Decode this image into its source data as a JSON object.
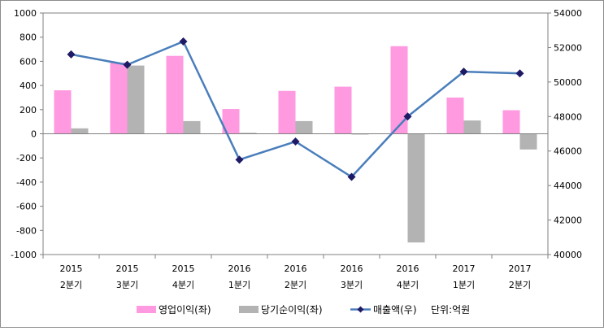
{
  "chart_data": {
    "type": "bar",
    "categories": [
      [
        "2015",
        "2분기"
      ],
      [
        "2015",
        "3분기"
      ],
      [
        "2015",
        "4분기"
      ],
      [
        "2016",
        "1분기"
      ],
      [
        "2016",
        "2분기"
      ],
      [
        "2016",
        "3분기"
      ],
      [
        "2016",
        "4분기"
      ],
      [
        "2017",
        "1분기"
      ],
      [
        "2017",
        "2분기"
      ]
    ],
    "series": [
      {
        "name": "영업이익(좌)",
        "type": "bar",
        "axis": "left",
        "color": "#ff99e0",
        "values": [
          360,
          590,
          645,
          205,
          355,
          390,
          725,
          300,
          195
        ]
      },
      {
        "name": "당기순이익(좌)",
        "type": "bar",
        "axis": "left",
        "color": "#b3b3b3",
        "values": [
          45,
          565,
          105,
          8,
          105,
          -5,
          -900,
          110,
          -130
        ]
      },
      {
        "name": "매출액(우)",
        "type": "line",
        "axis": "right",
        "color": "#4a7ebb",
        "marker_color": "#1f1a66",
        "values": [
          51600,
          51000,
          52350,
          45500,
          46550,
          44500,
          48000,
          50600,
          50500
        ]
      }
    ],
    "unit_note": "단위:억원",
    "y_left": {
      "min": -1000,
      "max": 1000,
      "step": 200,
      "ticks": [
        "1000",
        "800",
        "600",
        "400",
        "200",
        "0",
        "-200",
        "-400",
        "-600",
        "-800",
        "-1000"
      ]
    },
    "y_right": {
      "min": 40000,
      "max": 54000,
      "step": 2000,
      "ticks": [
        "54000",
        "52000",
        "50000",
        "48000",
        "46000",
        "44000",
        "42000",
        "40000"
      ]
    },
    "grid": false,
    "legend_position": "bottom"
  }
}
